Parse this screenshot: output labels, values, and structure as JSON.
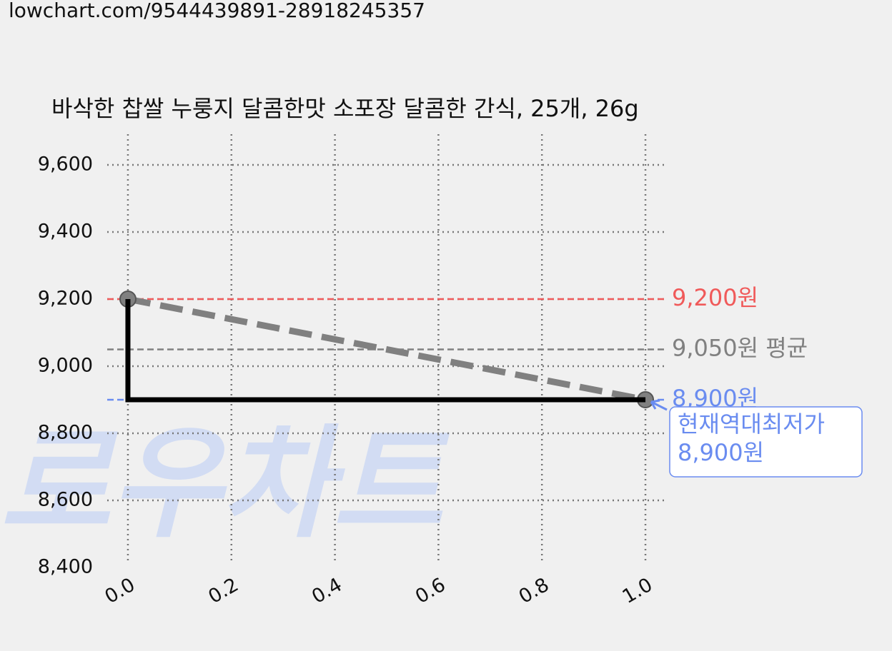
{
  "url": "lowchart.com/9544439891-28918245357",
  "chart_data": {
    "type": "line",
    "title": "바삭한 찹쌀 누룽지 달콤한맛 소포장 달콤한 간식, 25개, 26g",
    "watermark": "로우차트",
    "x": [
      0,
      1
    ],
    "series": [
      {
        "color": "#808080",
        "values": [
          9200,
          8900
        ],
        "dashed": true,
        "markers": true
      },
      {
        "color": "#000000",
        "x": [
          0,
          0,
          1
        ],
        "values": [
          9200,
          8900,
          8900
        ],
        "dashed": false,
        "markers": false
      }
    ],
    "reference_lines": [
      {
        "value": 9200,
        "label": "9,200원",
        "color": "#f05a5a"
      },
      {
        "value": 9050,
        "label": "9,050원 평균",
        "color": "#808080"
      },
      {
        "value": 8900,
        "label": "8,900원",
        "color": "#6a8cf0"
      }
    ],
    "annotation": {
      "lines": [
        "현재역대최저가",
        "8,900원"
      ],
      "x": 1,
      "y": 8900,
      "color": "#6a8cf0"
    },
    "xlim": [
      -0.04,
      1.04
    ],
    "ylim": [
      8400,
      9600
    ],
    "xticks": [
      {
        "value": 0,
        "label": "0.0"
      },
      0.2,
      0.4,
      0.6,
      0.8,
      {
        "value": 1,
        "label": "1.0"
      }
    ],
    "yticks": [
      {
        "value": 8400,
        "label": "8,400"
      },
      {
        "value": 8600,
        "label": "8,600"
      },
      {
        "value": 8800,
        "label": "8,800"
      },
      {
        "value": 9000,
        "label": "9,000"
      },
      {
        "value": 9200,
        "label": "9,200"
      },
      {
        "value": 9400,
        "label": "9,400"
      },
      {
        "value": 9600,
        "label": "9,600"
      }
    ],
    "grid": true
  }
}
